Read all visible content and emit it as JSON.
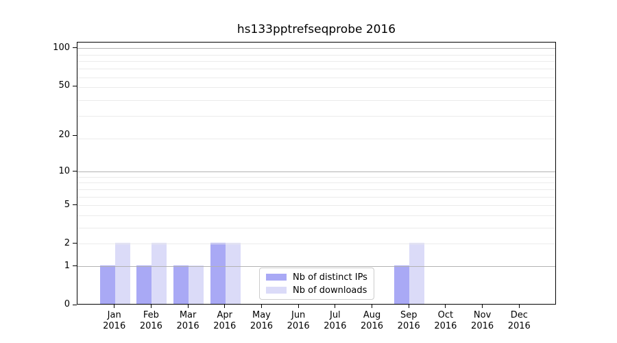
{
  "title": "hs133pptrefseqprobe 2016",
  "chart_data": {
    "type": "bar",
    "title": "hs133pptrefseqprobe 2016",
    "categories": [
      "Jan",
      "Feb",
      "Mar",
      "Apr",
      "May",
      "Jun",
      "Jul",
      "Aug",
      "Sep",
      "Oct",
      "Nov",
      "Dec"
    ],
    "year": "2016",
    "series": [
      {
        "name": "Nb of distinct IPs",
        "color": "#a9a9f5",
        "values": [
          1,
          1,
          1,
          2,
          0,
          0,
          0,
          0,
          1,
          0,
          0,
          0
        ]
      },
      {
        "name": "Nb of downloads",
        "color": "#dbdbf8",
        "values": [
          2,
          2,
          1,
          2,
          0,
          0,
          0,
          0,
          2,
          0,
          0,
          0
        ]
      }
    ],
    "yscale": "log1p",
    "yticks": [
      0,
      1,
      2,
      5,
      10,
      20,
      50,
      100
    ],
    "ylim": [
      0,
      112
    ],
    "grid": {
      "on": true,
      "major_values": [
        1,
        10,
        100
      ],
      "minor_values": [
        2,
        3,
        4,
        5,
        6,
        7,
        8,
        9,
        19,
        29,
        39,
        49,
        59,
        69,
        79,
        89
      ],
      "major_color": "#b2b2b2",
      "minor_color": "#ebebeb"
    },
    "legend_position": "inside-bottom-center",
    "xlabel": "",
    "ylabel": ""
  },
  "colors": {
    "background": "#ffffff",
    "axis": "#000000",
    "text": "#000000"
  }
}
